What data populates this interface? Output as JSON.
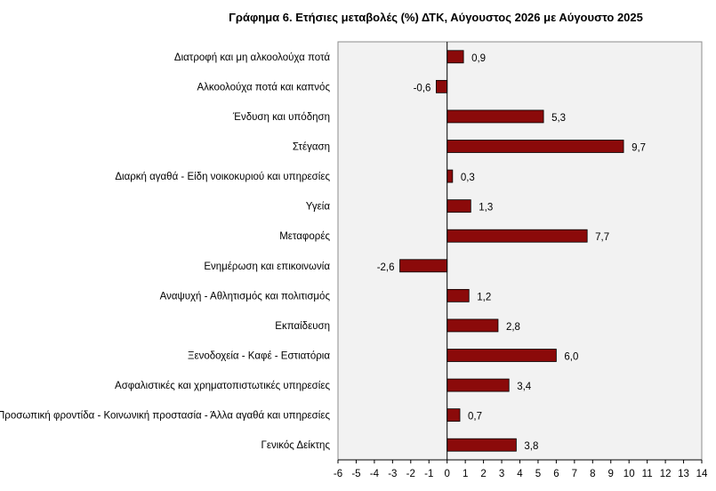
{
  "chart_data": {
    "type": "bar",
    "orientation": "horizontal",
    "title": "Γράφημα 6. Ετήσιες μεταβολές (%) ΔΤΚ, Αύγουστος 2026 με Αύγουστο 2025",
    "categories": [
      "Διατροφή και μη αλκοολούχα ποτά",
      "Αλκοολούχα ποτά και καπνός",
      "Ένδυση και υπόδηση",
      "Στέγαση",
      "Διαρκή αγαθά - Είδη νοικοκυριού και υπηρεσίες",
      "Υγεία",
      "Μεταφορές",
      "Ενημέρωση και επικοινωνία",
      "Αναψυχή - Αθλητισμός και πολιτισμός",
      "Εκπαίδευση",
      "Ξενοδοχεία - Καφέ - Εστιατόρια",
      "Ασφαλιστικές και χρηματοπιστωτικές υπηρεσίες",
      "Προσωπική φροντίδα - Κοινωνική προστασία - Άλλα αγαθά και υπηρεσίες",
      "Γενικός Δείκτης"
    ],
    "values": [
      0.9,
      -0.6,
      5.3,
      9.7,
      0.3,
      1.3,
      7.7,
      -2.6,
      1.2,
      2.8,
      6.0,
      3.4,
      0.7,
      3.8
    ],
    "value_labels": [
      "0,9",
      "-0,6",
      "5,3",
      "9,7",
      "0,3",
      "1,3",
      "7,7",
      "-2,6",
      "1,2",
      "2,8",
      "6,0",
      "3,4",
      "0,7",
      "3,8"
    ],
    "xlim": [
      -6,
      14
    ],
    "xticks": [
      -6,
      -5,
      -4,
      -3,
      -2,
      -1,
      0,
      1,
      2,
      3,
      4,
      5,
      6,
      7,
      8,
      9,
      10,
      11,
      12,
      13,
      14
    ],
    "xlabel": "",
    "ylabel": "",
    "grid": false,
    "legend": "none",
    "colors": {
      "bar": "#8b0a0a",
      "bar_edge": "#000000",
      "plot_bg": "#f2f2f2",
      "axis": "#000000"
    }
  }
}
